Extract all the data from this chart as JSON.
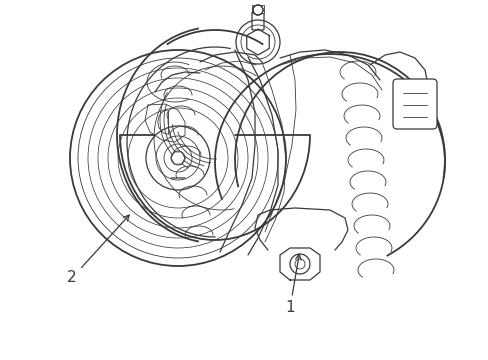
{
  "bg_color": "#ffffff",
  "line_color": "#3a3a3a",
  "label1_text": "1",
  "label2_text": "2",
  "figsize": [
    4.89,
    3.6
  ],
  "dpi": 100,
  "lw_main": 1.3,
  "lw_med": 0.9,
  "lw_thin": 0.6
}
